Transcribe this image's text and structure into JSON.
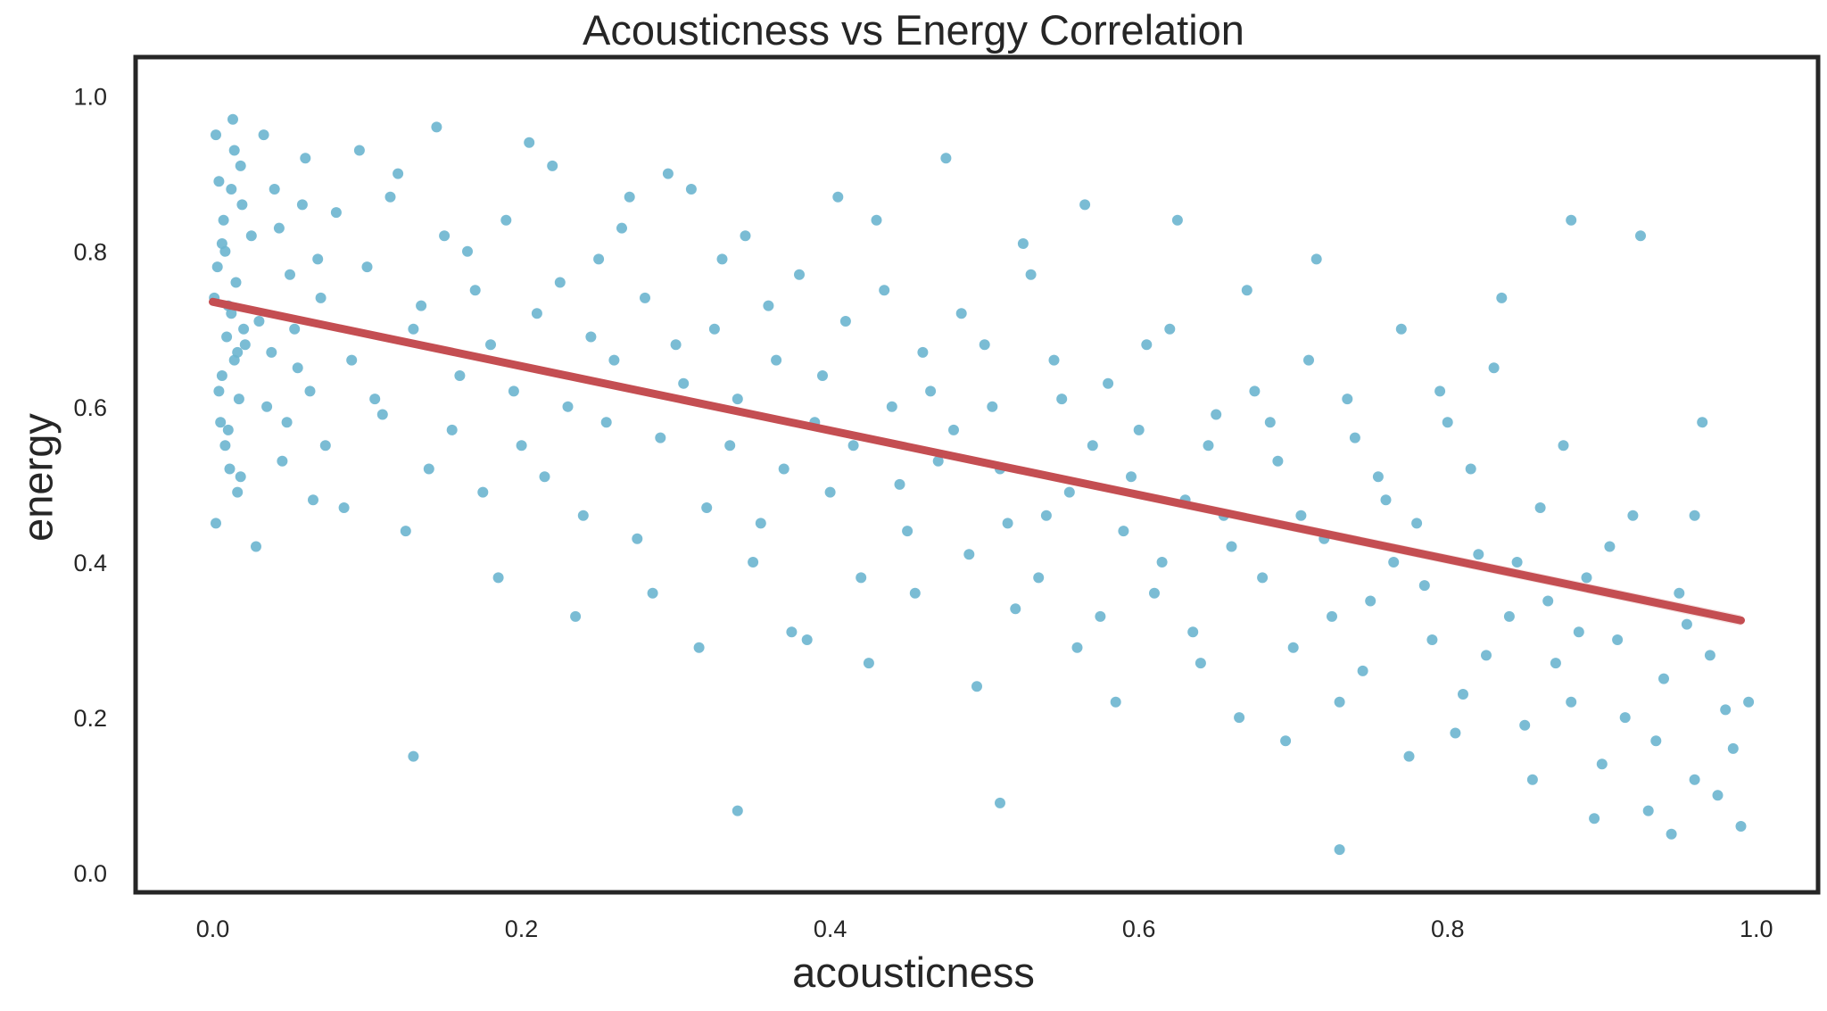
{
  "chart_data": {
    "type": "scatter",
    "title": "Acousticness vs Energy Correlation",
    "xlabel": "acousticness",
    "ylabel": "energy",
    "xlim": [
      -0.05,
      1.04
    ],
    "ylim": [
      -0.025,
      1.05
    ],
    "xticks": [
      "0.0",
      "0.2",
      "0.4",
      "0.6",
      "0.8",
      "1.0"
    ],
    "yticks": [
      "0.0",
      "0.2",
      "0.4",
      "0.6",
      "0.8",
      "1.0"
    ],
    "grid": false,
    "colors": {
      "points": "#6bb5cf",
      "regression": "#c44e52",
      "axes": "#262626"
    },
    "regression_line": {
      "x": [
        0.0,
        0.99
      ],
      "y": [
        0.735,
        0.325
      ]
    },
    "points_description_note": "",
    "points": [
      [
        0.002,
        0.95
      ],
      [
        0.004,
        0.62
      ],
      [
        0.006,
        0.81
      ],
      [
        0.008,
        0.55
      ],
      [
        0.01,
        0.73
      ],
      [
        0.012,
        0.88
      ],
      [
        0.014,
        0.66
      ],
      [
        0.016,
        0.49
      ],
      [
        0.018,
        0.91
      ],
      [
        0.02,
        0.7
      ],
      [
        0.003,
        0.78
      ],
      [
        0.005,
        0.58
      ],
      [
        0.007,
        0.84
      ],
      [
        0.009,
        0.69
      ],
      [
        0.011,
        0.52
      ],
      [
        0.013,
        0.97
      ],
      [
        0.015,
        0.76
      ],
      [
        0.017,
        0.61
      ],
      [
        0.019,
        0.86
      ],
      [
        0.021,
        0.68
      ],
      [
        0.001,
        0.74
      ],
      [
        0.002,
        0.45
      ],
      [
        0.004,
        0.89
      ],
      [
        0.006,
        0.64
      ],
      [
        0.008,
        0.8
      ],
      [
        0.01,
        0.57
      ],
      [
        0.012,
        0.72
      ],
      [
        0.014,
        0.93
      ],
      [
        0.016,
        0.67
      ],
      [
        0.018,
        0.51
      ],
      [
        0.025,
        0.82
      ],
      [
        0.03,
        0.71
      ],
      [
        0.035,
        0.6
      ],
      [
        0.04,
        0.88
      ],
      [
        0.045,
        0.53
      ],
      [
        0.05,
        0.77
      ],
      [
        0.055,
        0.65
      ],
      [
        0.06,
        0.92
      ],
      [
        0.065,
        0.48
      ],
      [
        0.07,
        0.74
      ],
      [
        0.028,
        0.42
      ],
      [
        0.033,
        0.95
      ],
      [
        0.038,
        0.67
      ],
      [
        0.043,
        0.83
      ],
      [
        0.048,
        0.58
      ],
      [
        0.053,
        0.7
      ],
      [
        0.058,
        0.86
      ],
      [
        0.063,
        0.62
      ],
      [
        0.068,
        0.79
      ],
      [
        0.073,
        0.55
      ],
      [
        0.08,
        0.85
      ],
      [
        0.09,
        0.66
      ],
      [
        0.1,
        0.78
      ],
      [
        0.11,
        0.59
      ],
      [
        0.12,
        0.9
      ],
      [
        0.13,
        0.7
      ],
      [
        0.14,
        0.52
      ],
      [
        0.15,
        0.82
      ],
      [
        0.16,
        0.64
      ],
      [
        0.17,
        0.75
      ],
      [
        0.085,
        0.47
      ],
      [
        0.095,
        0.93
      ],
      [
        0.105,
        0.61
      ],
      [
        0.115,
        0.87
      ],
      [
        0.125,
        0.44
      ],
      [
        0.135,
        0.73
      ],
      [
        0.145,
        0.96
      ],
      [
        0.155,
        0.57
      ],
      [
        0.165,
        0.8
      ],
      [
        0.175,
        0.49
      ],
      [
        0.18,
        0.68
      ],
      [
        0.19,
        0.84
      ],
      [
        0.2,
        0.55
      ],
      [
        0.21,
        0.72
      ],
      [
        0.22,
        0.91
      ],
      [
        0.23,
        0.6
      ],
      [
        0.24,
        0.46
      ],
      [
        0.25,
        0.79
      ],
      [
        0.26,
        0.66
      ],
      [
        0.27,
        0.87
      ],
      [
        0.185,
        0.38
      ],
      [
        0.195,
        0.62
      ],
      [
        0.205,
        0.94
      ],
      [
        0.215,
        0.51
      ],
      [
        0.225,
        0.76
      ],
      [
        0.235,
        0.33
      ],
      [
        0.245,
        0.69
      ],
      [
        0.255,
        0.58
      ],
      [
        0.265,
        0.83
      ],
      [
        0.275,
        0.43
      ],
      [
        0.28,
        0.74
      ],
      [
        0.29,
        0.56
      ],
      [
        0.3,
        0.68
      ],
      [
        0.31,
        0.88
      ],
      [
        0.32,
        0.47
      ],
      [
        0.33,
        0.79
      ],
      [
        0.34,
        0.61
      ],
      [
        0.35,
        0.4
      ],
      [
        0.36,
        0.73
      ],
      [
        0.37,
        0.52
      ],
      [
        0.285,
        0.36
      ],
      [
        0.295,
        0.9
      ],
      [
        0.305,
        0.63
      ],
      [
        0.315,
        0.29
      ],
      [
        0.325,
        0.7
      ],
      [
        0.335,
        0.55
      ],
      [
        0.345,
        0.82
      ],
      [
        0.355,
        0.45
      ],
      [
        0.365,
        0.66
      ],
      [
        0.375,
        0.31
      ],
      [
        0.38,
        0.77
      ],
      [
        0.39,
        0.58
      ],
      [
        0.4,
        0.49
      ],
      [
        0.41,
        0.71
      ],
      [
        0.42,
        0.38
      ],
      [
        0.43,
        0.84
      ],
      [
        0.44,
        0.6
      ],
      [
        0.45,
        0.44
      ],
      [
        0.46,
        0.67
      ],
      [
        0.47,
        0.53
      ],
      [
        0.385,
        0.3
      ],
      [
        0.395,
        0.64
      ],
      [
        0.405,
        0.87
      ],
      [
        0.415,
        0.55
      ],
      [
        0.425,
        0.27
      ],
      [
        0.435,
        0.75
      ],
      [
        0.445,
        0.5
      ],
      [
        0.455,
        0.36
      ],
      [
        0.465,
        0.62
      ],
      [
        0.475,
        0.92
      ],
      [
        0.48,
        0.57
      ],
      [
        0.49,
        0.41
      ],
      [
        0.5,
        0.68
      ],
      [
        0.51,
        0.52
      ],
      [
        0.52,
        0.34
      ],
      [
        0.53,
        0.77
      ],
      [
        0.54,
        0.46
      ],
      [
        0.55,
        0.61
      ],
      [
        0.56,
        0.29
      ],
      [
        0.57,
        0.55
      ],
      [
        0.485,
        0.72
      ],
      [
        0.495,
        0.24
      ],
      [
        0.505,
        0.6
      ],
      [
        0.515,
        0.45
      ],
      [
        0.525,
        0.81
      ],
      [
        0.535,
        0.38
      ],
      [
        0.545,
        0.66
      ],
      [
        0.555,
        0.49
      ],
      [
        0.565,
        0.86
      ],
      [
        0.575,
        0.33
      ],
      [
        0.58,
        0.63
      ],
      [
        0.59,
        0.44
      ],
      [
        0.6,
        0.57
      ],
      [
        0.61,
        0.36
      ],
      [
        0.62,
        0.7
      ],
      [
        0.63,
        0.48
      ],
      [
        0.64,
        0.27
      ],
      [
        0.65,
        0.59
      ],
      [
        0.66,
        0.42
      ],
      [
        0.67,
        0.75
      ],
      [
        0.585,
        0.22
      ],
      [
        0.595,
        0.51
      ],
      [
        0.605,
        0.68
      ],
      [
        0.615,
        0.4
      ],
      [
        0.625,
        0.84
      ],
      [
        0.635,
        0.31
      ],
      [
        0.645,
        0.55
      ],
      [
        0.655,
        0.46
      ],
      [
        0.665,
        0.2
      ],
      [
        0.675,
        0.62
      ],
      [
        0.68,
        0.38
      ],
      [
        0.69,
        0.53
      ],
      [
        0.7,
        0.29
      ],
      [
        0.71,
        0.66
      ],
      [
        0.72,
        0.43
      ],
      [
        0.73,
        0.22
      ],
      [
        0.74,
        0.56
      ],
      [
        0.75,
        0.35
      ],
      [
        0.76,
        0.48
      ],
      [
        0.77,
        0.7
      ],
      [
        0.685,
        0.58
      ],
      [
        0.695,
        0.17
      ],
      [
        0.705,
        0.46
      ],
      [
        0.715,
        0.79
      ],
      [
        0.725,
        0.33
      ],
      [
        0.735,
        0.61
      ],
      [
        0.745,
        0.26
      ],
      [
        0.755,
        0.51
      ],
      [
        0.765,
        0.4
      ],
      [
        0.775,
        0.15
      ],
      [
        0.78,
        0.45
      ],
      [
        0.79,
        0.3
      ],
      [
        0.8,
        0.58
      ],
      [
        0.81,
        0.23
      ],
      [
        0.82,
        0.41
      ],
      [
        0.83,
        0.65
      ],
      [
        0.84,
        0.33
      ],
      [
        0.85,
        0.19
      ],
      [
        0.86,
        0.47
      ],
      [
        0.87,
        0.27
      ],
      [
        0.785,
        0.37
      ],
      [
        0.795,
        0.62
      ],
      [
        0.805,
        0.18
      ],
      [
        0.815,
        0.52
      ],
      [
        0.825,
        0.28
      ],
      [
        0.835,
        0.74
      ],
      [
        0.845,
        0.4
      ],
      [
        0.855,
        0.12
      ],
      [
        0.865,
        0.35
      ],
      [
        0.875,
        0.55
      ],
      [
        0.88,
        0.22
      ],
      [
        0.89,
        0.38
      ],
      [
        0.9,
        0.14
      ],
      [
        0.91,
        0.3
      ],
      [
        0.92,
        0.46
      ],
      [
        0.93,
        0.08
      ],
      [
        0.94,
        0.25
      ],
      [
        0.95,
        0.36
      ],
      [
        0.96,
        0.12
      ],
      [
        0.97,
        0.28
      ],
      [
        0.885,
        0.31
      ],
      [
        0.895,
        0.07
      ],
      [
        0.905,
        0.42
      ],
      [
        0.915,
        0.2
      ],
      [
        0.925,
        0.82
      ],
      [
        0.935,
        0.17
      ],
      [
        0.945,
        0.05
      ],
      [
        0.955,
        0.32
      ],
      [
        0.965,
        0.58
      ],
      [
        0.975,
        0.1
      ],
      [
        0.98,
        0.21
      ],
      [
        0.99,
        0.06
      ],
      [
        0.985,
        0.16
      ],
      [
        0.995,
        0.22
      ],
      [
        0.96,
        0.46
      ],
      [
        0.73,
        0.03
      ],
      [
        0.34,
        0.08
      ],
      [
        0.13,
        0.15
      ],
      [
        0.51,
        0.09
      ],
      [
        0.88,
        0.84
      ]
    ]
  }
}
